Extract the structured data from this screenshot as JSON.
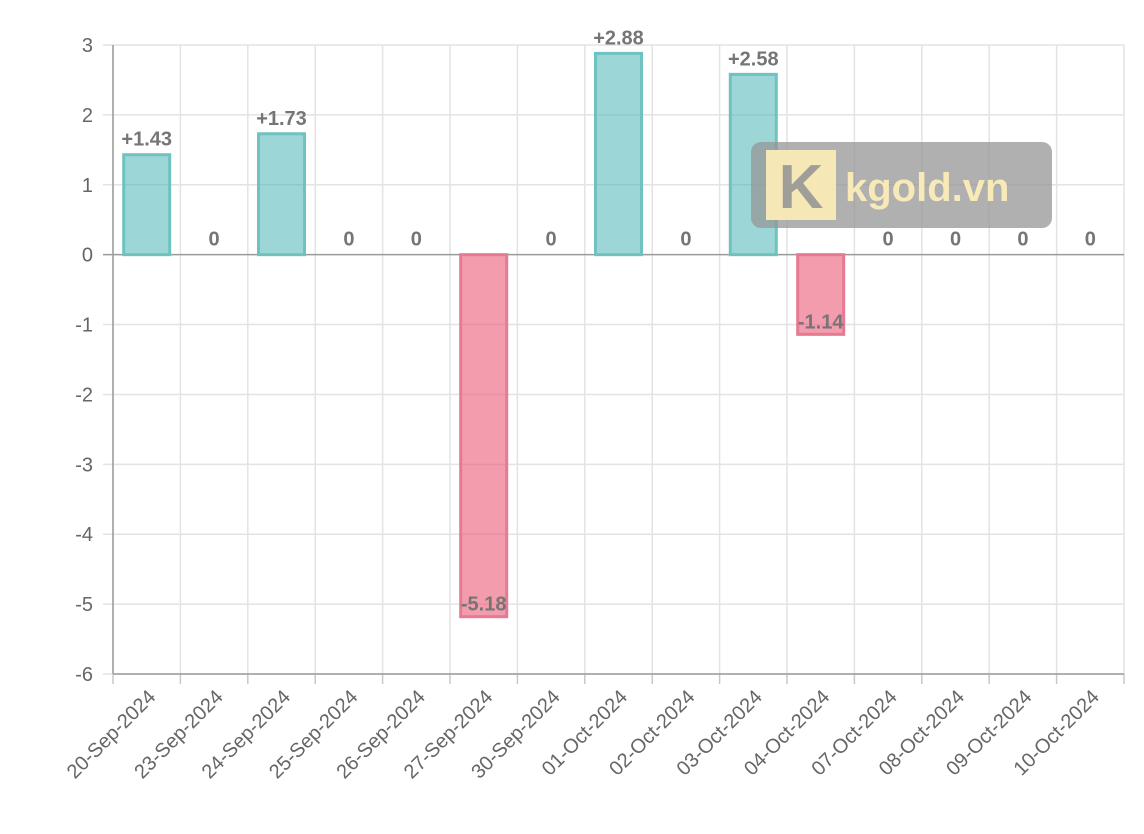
{
  "chart_data": {
    "type": "bar",
    "categories": [
      "20-Sep-2024",
      "23-Sep-2024",
      "24-Sep-2024",
      "25-Sep-2024",
      "26-Sep-2024",
      "27-Sep-2024",
      "30-Sep-2024",
      "01-Oct-2024",
      "02-Oct-2024",
      "03-Oct-2024",
      "04-Oct-2024",
      "07-Oct-2024",
      "08-Oct-2024",
      "09-Oct-2024",
      "10-Oct-2024"
    ],
    "values": [
      1.43,
      0,
      1.73,
      0,
      0,
      -5.18,
      0,
      2.88,
      0,
      2.58,
      -1.14,
      0,
      0,
      0,
      0
    ],
    "data_labels": [
      "+1.43",
      "0",
      "+1.73",
      "0",
      "0",
      "-5.18",
      "0",
      "+2.88",
      "0",
      "+2.58",
      "-1.14",
      "0",
      "0",
      "0",
      "0"
    ],
    "y_ticks": [
      "3",
      "2",
      "1",
      "0",
      "-1",
      "-2",
      "-3",
      "-4",
      "-5",
      "-6"
    ],
    "ylim": [
      -6,
      3
    ],
    "grid": true,
    "colors": {
      "positive": "#6ec2bf",
      "negative": "#e57a91"
    },
    "watermark": {
      "logo_letter": "K",
      "text": "kgold.vn"
    }
  }
}
